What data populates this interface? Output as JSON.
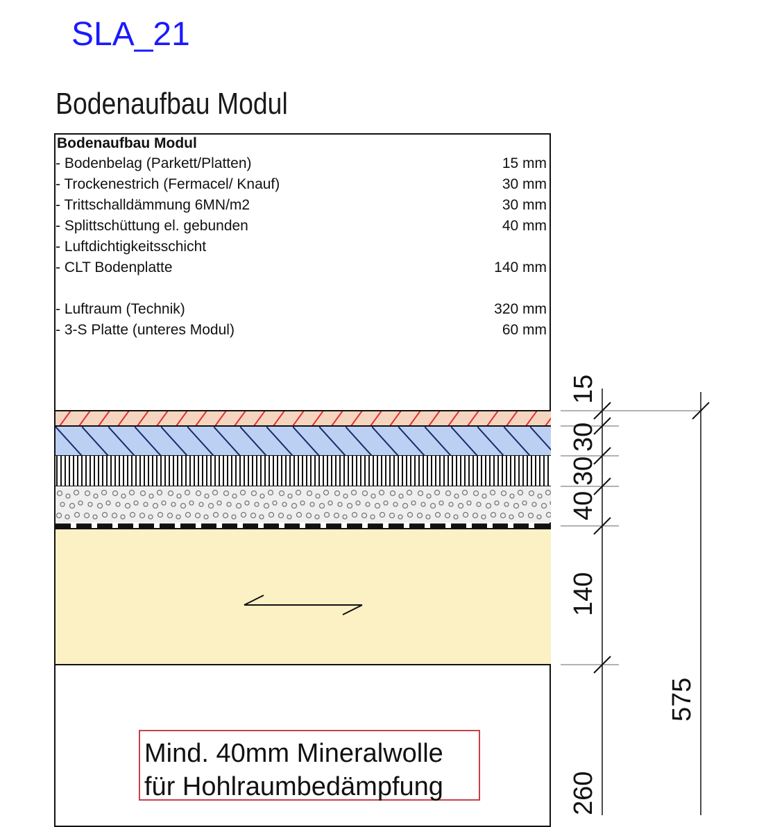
{
  "header": {
    "code": "SLA_21",
    "title": "Bodenaufbau Modul"
  },
  "legend": {
    "heading": "Bodenaufbau Modul",
    "rows": [
      {
        "label": "- Bodenbelag (Parkett/Platten)",
        "value": "15 mm"
      },
      {
        "label": "- Trockenestrich (Fermacel/ Knauf)",
        "value": "30 mm"
      },
      {
        "label": "- Trittschalldämmung 6MN/m2",
        "value": "30 mm"
      },
      {
        "label": "- Splittschüttung el. gebunden",
        "value": "40 mm"
      },
      {
        "label": "- Luftdichtigkeitsschicht",
        "value": ""
      },
      {
        "label": "- CLT Bodenplatte",
        "value": "140 mm"
      },
      {
        "label": "- Luftraum  (Technik)",
        "value": "320 mm"
      },
      {
        "label": "- 3-S Platte (unteres Modul)",
        "value": "60 mm"
      }
    ]
  },
  "dimensions": {
    "d1": "15",
    "d2": "30",
    "d3": "30",
    "d4": "40",
    "d5": "140",
    "d6": "260",
    "total": "575"
  },
  "note": {
    "line1": "Mind. 40mm Mineralwolle",
    "line2": "für Hohlraumbedämpfung"
  },
  "colors": {
    "parquet": "#f6d5c0",
    "parquet_hatch": "#e03030",
    "screed": "#bcd0f4",
    "clt": "#fbf1c4",
    "gravel": "#efefef",
    "note_border": "#c8404a",
    "code_text": "#1a1aff"
  }
}
